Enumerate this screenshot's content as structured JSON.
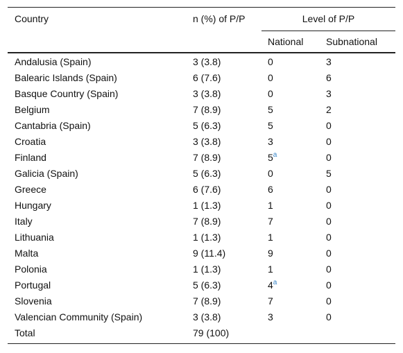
{
  "table": {
    "header": {
      "country": "Country",
      "n": "n (%) of P/P",
      "level": "Level of P/P",
      "national": "National",
      "subnational": "Subnational"
    },
    "rows": [
      [
        "Andalusia (Spain)",
        "3 (3.8)",
        "0",
        "3"
      ],
      [
        "Balearic Islands (Spain)",
        "6 (7.6)",
        "0",
        "6"
      ],
      [
        "Basque Country (Spain)",
        "3 (3.8)",
        "0",
        "3"
      ],
      [
        "Belgium",
        "7 (8.9)",
        "5",
        "2"
      ],
      [
        "Cantabria (Spain)",
        "5 (6.3)",
        "5",
        "0"
      ],
      [
        "Croatia",
        "3 (3.8)",
        "3",
        "0"
      ],
      [
        "Finland",
        "7 (8.9)",
        {
          "text": "5",
          "sup": "a"
        },
        "0"
      ],
      [
        "Galicia (Spain)",
        "5 (6.3)",
        "0",
        "5"
      ],
      [
        "Greece",
        "6 (7.6)",
        "6",
        "0"
      ],
      [
        "Hungary",
        "1 (1.3)",
        "1",
        "0"
      ],
      [
        "Italy",
        "7 (8.9)",
        "7",
        "0"
      ],
      [
        "Lithuania",
        "1 (1.3)",
        "1",
        "0"
      ],
      [
        "Malta",
        "9 (11.4)",
        "9",
        "0"
      ],
      [
        "Polonia",
        "1 (1.3)",
        "1",
        "0"
      ],
      [
        "Portugal",
        "5 (6.3)",
        {
          "text": "4",
          "sup": "a"
        },
        "0"
      ],
      [
        "Slovenia",
        "7 (8.9)",
        "7",
        "0"
      ],
      [
        "Valencian Community (Spain)",
        "3 (3.8)",
        "3",
        "0"
      ],
      [
        "Total",
        "79 (100)"
      ]
    ]
  }
}
